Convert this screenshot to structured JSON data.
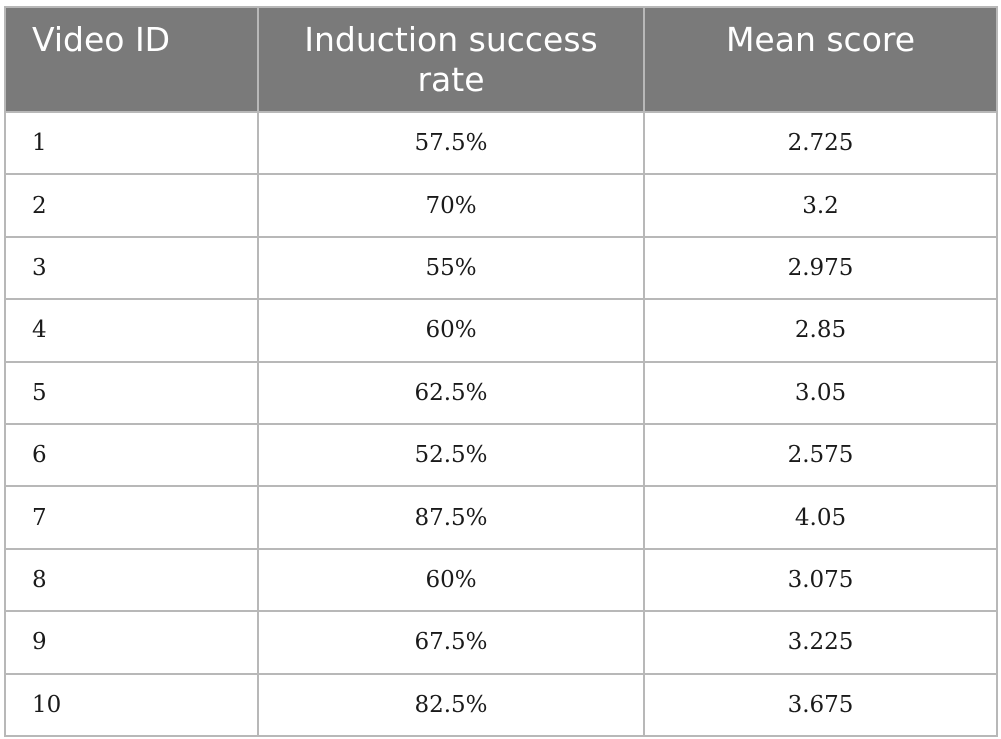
{
  "table": {
    "headers": [
      "Video ID",
      "Induction success rate",
      "Mean score"
    ],
    "rows": [
      [
        "1",
        "57.5%",
        "2.725"
      ],
      [
        "2",
        "70%",
        "3.2"
      ],
      [
        "3",
        "55%",
        "2.975"
      ],
      [
        "4",
        "60%",
        "2.85"
      ],
      [
        "5",
        "62.5%",
        "3.05"
      ],
      [
        "6",
        "52.5%",
        "2.575"
      ],
      [
        "7",
        "87.5%",
        "4.05"
      ],
      [
        "8",
        "60%",
        "3.075"
      ],
      [
        "9",
        "67.5%",
        "3.225"
      ],
      [
        "10",
        "82.5%",
        "3.675"
      ]
    ]
  },
  "colors": {
    "header_background": "#7a7a7a",
    "header_text": "#ffffff",
    "grid": "#b8b8b8"
  }
}
